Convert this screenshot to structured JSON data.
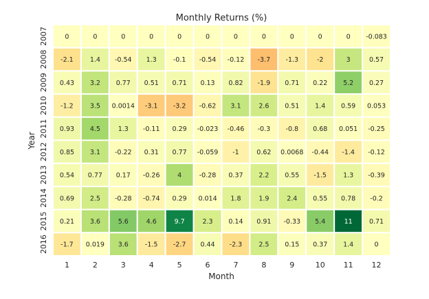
{
  "chart_data": {
    "type": "heatmap",
    "title": "Monthly Returns (%)",
    "xlabel": "Month",
    "ylabel": "Year",
    "x_categories": [
      "1",
      "2",
      "3",
      "4",
      "5",
      "6",
      "7",
      "8",
      "9",
      "10",
      "11",
      "12"
    ],
    "y_categories": [
      "2007",
      "2008",
      "2009",
      "2010",
      "2011",
      "2012",
      "2013",
      "2014",
      "2015",
      "2016"
    ],
    "values": [
      [
        "0",
        "0",
        "0",
        "0",
        "0",
        "0",
        "0",
        "0",
        "0",
        "0",
        "0",
        "-0.083"
      ],
      [
        "-2.1",
        "1.4",
        "-0.54",
        "1.3",
        "-0.1",
        "-0.54",
        "-0.12",
        "-3.7",
        "-1.3",
        "-2",
        "3",
        "0.57"
      ],
      [
        "0.43",
        "3.2",
        "0.77",
        "0.51",
        "0.71",
        "0.13",
        "0.82",
        "-1.9",
        "0.71",
        "0.22",
        "5.2",
        "0.27"
      ],
      [
        "-1.2",
        "3.5",
        "0.0014",
        "-3.1",
        "-3.2",
        "-0.62",
        "3.1",
        "2.6",
        "0.51",
        "1.4",
        "0.59",
        "0.053"
      ],
      [
        "0.93",
        "4.5",
        "1.3",
        "-0.11",
        "0.29",
        "-0.023",
        "-0.46",
        "-0.3",
        "-0.8",
        "0.68",
        "0.051",
        "-0.25"
      ],
      [
        "0.85",
        "3.1",
        "-0.22",
        "0.31",
        "0.77",
        "-0.059",
        "-1",
        "0.62",
        "0.0068",
        "-0.44",
        "-1.4",
        "-0.12"
      ],
      [
        "0.54",
        "0.77",
        "0.17",
        "-0.26",
        "4",
        "-0.28",
        "0.37",
        "2.2",
        "0.55",
        "-1.5",
        "1.3",
        "-0.39"
      ],
      [
        "0.69",
        "2.5",
        "-0.28",
        "-0.74",
        "0.29",
        "0.014",
        "1.8",
        "1.9",
        "2.4",
        "0.55",
        "0.78",
        "-0.2"
      ],
      [
        "0.21",
        "3.6",
        "5.6",
        "4.6",
        "9.7",
        "2.3",
        "0.14",
        "0.91",
        "-0.33",
        "5.4",
        "11",
        "0.71"
      ],
      [
        "-1.7",
        "0.019",
        "3.6",
        "-1.5",
        "-2.7",
        "0.44",
        "-2.3",
        "2.5",
        "0.15",
        "0.37",
        "1.4",
        "0"
      ]
    ],
    "colormap": "RdYlGn",
    "center": 0,
    "vmin": -11,
    "vmax": 11,
    "grid": false,
    "legend": "none"
  }
}
